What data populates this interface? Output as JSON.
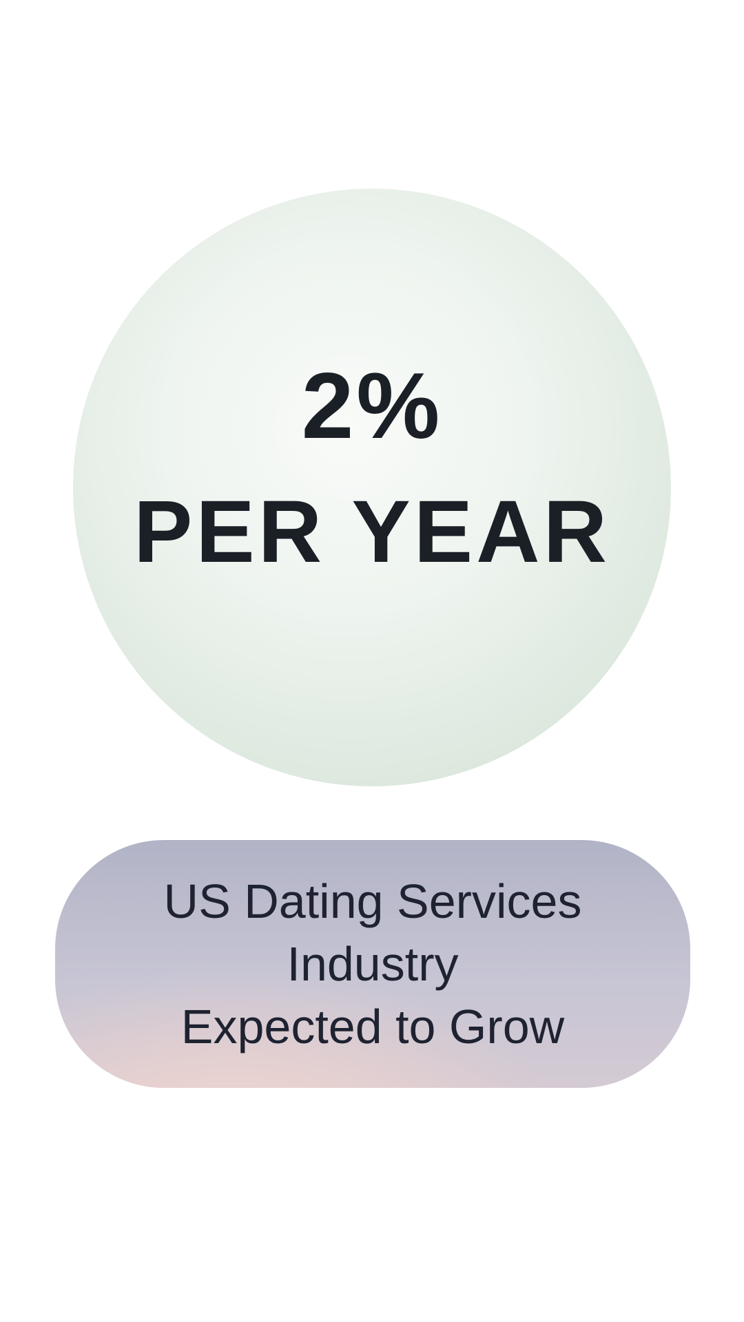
{
  "page": {
    "background": "#ffffff"
  },
  "stat_circle": {
    "value": "2%",
    "label": "PER YEAR",
    "text_color": "#1b1f26",
    "gradient": {
      "center": "#f9fbf9",
      "mid": "#eef4ef",
      "edge": "#dbe7dd",
      "rim": "#d3e3d6"
    }
  },
  "caption_pill": {
    "lines": [
      "US Dating Services",
      "Industry",
      "Expected to Grow"
    ],
    "text_color": "#1e2231",
    "gradient": {
      "top": "#b1b3c6",
      "middle": "#c7c5d4",
      "bottom": "#d4cad3",
      "accent_pink": "#f4d6ce"
    }
  }
}
